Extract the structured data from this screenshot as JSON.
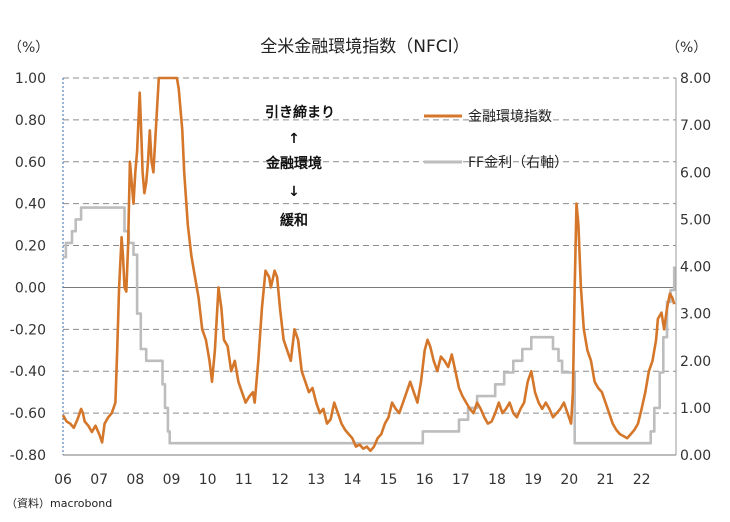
{
  "chart_data": {
    "type": "line",
    "title": "全米金融環境指数（NFCI）",
    "left_unit": "（%）",
    "right_unit": "（%）",
    "source": "（資料）macrobond",
    "grid": true,
    "legend_position": "top-right",
    "x_range": [
      2006.0,
      2022.95
    ],
    "x_tick_values": [
      2006,
      2007,
      2008,
      2009,
      2010,
      2011,
      2012,
      2013,
      2014,
      2015,
      2016,
      2017,
      2018,
      2019,
      2020,
      2021,
      2022
    ],
    "x_tick_labels": [
      "06",
      "07",
      "08",
      "09",
      "10",
      "11",
      "12",
      "13",
      "14",
      "15",
      "16",
      "17",
      "18",
      "19",
      "20",
      "21",
      "22"
    ],
    "y_left": {
      "range": [
        -0.8,
        1.0
      ],
      "ticks": [
        "-0.80",
        "-0.60",
        "-0.40",
        "-0.20",
        "0.00",
        "0.20",
        "0.40",
        "0.60",
        "0.80",
        "1.00"
      ],
      "tick_values": [
        -0.8,
        -0.6,
        -0.4,
        -0.2,
        0.0,
        0.2,
        0.4,
        0.6,
        0.8,
        1.0
      ]
    },
    "y_right": {
      "range": [
        0.0,
        8.0
      ],
      "ticks": [
        "0.00",
        "1.00",
        "2.00",
        "3.00",
        "4.00",
        "5.00",
        "6.00",
        "7.00",
        "8.00"
      ],
      "tick_values": [
        0,
        1,
        2,
        3,
        4,
        5,
        6,
        7,
        8
      ]
    },
    "annotations": {
      "line1": "引き締まり",
      "arrow_up": "↑",
      "line2": "金融環境",
      "arrow_down": "↓",
      "line3": "緩和"
    },
    "colors": {
      "nfci": "#D4772B",
      "ff": "#BDBDBD",
      "grid": "#8C8C8C"
    },
    "series": [
      {
        "name": "金融環境指数",
        "axis": "left",
        "color": "#D4772B",
        "points": [
          [
            2006.0,
            -0.61
          ],
          [
            2006.1,
            -0.64
          ],
          [
            2006.2,
            -0.65
          ],
          [
            2006.3,
            -0.67
          ],
          [
            2006.4,
            -0.63
          ],
          [
            2006.5,
            -0.58
          ],
          [
            2006.55,
            -0.6
          ],
          [
            2006.6,
            -0.64
          ],
          [
            2006.7,
            -0.66
          ],
          [
            2006.8,
            -0.69
          ],
          [
            2006.9,
            -0.66
          ],
          [
            2007.0,
            -0.7
          ],
          [
            2007.08,
            -0.74
          ],
          [
            2007.15,
            -0.65
          ],
          [
            2007.25,
            -0.62
          ],
          [
            2007.35,
            -0.6
          ],
          [
            2007.45,
            -0.55
          ],
          [
            2007.5,
            -0.3
          ],
          [
            2007.55,
            0.0
          ],
          [
            2007.62,
            0.24
          ],
          [
            2007.66,
            0.15
          ],
          [
            2007.7,
            0.0
          ],
          [
            2007.75,
            -0.02
          ],
          [
            2007.8,
            0.2
          ],
          [
            2007.85,
            0.6
          ],
          [
            2007.9,
            0.5
          ],
          [
            2007.95,
            0.4
          ],
          [
            2008.0,
            0.55
          ],
          [
            2008.05,
            0.65
          ],
          [
            2008.12,
            0.93
          ],
          [
            2008.15,
            0.8
          ],
          [
            2008.2,
            0.55
          ],
          [
            2008.25,
            0.45
          ],
          [
            2008.3,
            0.5
          ],
          [
            2008.35,
            0.6
          ],
          [
            2008.4,
            0.75
          ],
          [
            2008.45,
            0.6
          ],
          [
            2008.5,
            0.55
          ],
          [
            2008.55,
            0.7
          ],
          [
            2008.6,
            0.85
          ],
          [
            2008.65,
            1.0
          ],
          [
            2009.15,
            1.0
          ],
          [
            2009.2,
            0.95
          ],
          [
            2009.25,
            0.85
          ],
          [
            2009.3,
            0.75
          ],
          [
            2009.35,
            0.55
          ],
          [
            2009.45,
            0.3
          ],
          [
            2009.55,
            0.15
          ],
          [
            2009.65,
            0.05
          ],
          [
            2009.75,
            -0.05
          ],
          [
            2009.85,
            -0.2
          ],
          [
            2009.95,
            -0.25
          ],
          [
            2010.05,
            -0.35
          ],
          [
            2010.12,
            -0.45
          ],
          [
            2010.2,
            -0.3
          ],
          [
            2010.3,
            0.0
          ],
          [
            2010.38,
            -0.1
          ],
          [
            2010.45,
            -0.25
          ],
          [
            2010.55,
            -0.28
          ],
          [
            2010.65,
            -0.4
          ],
          [
            2010.75,
            -0.35
          ],
          [
            2010.85,
            -0.45
          ],
          [
            2010.95,
            -0.5
          ],
          [
            2011.05,
            -0.55
          ],
          [
            2011.15,
            -0.52
          ],
          [
            2011.25,
            -0.5
          ],
          [
            2011.3,
            -0.55
          ],
          [
            2011.4,
            -0.35
          ],
          [
            2011.5,
            -0.1
          ],
          [
            2011.6,
            0.08
          ],
          [
            2011.7,
            0.05
          ],
          [
            2011.75,
            0.0
          ],
          [
            2011.85,
            0.08
          ],
          [
            2011.92,
            0.05
          ],
          [
            2012.0,
            -0.1
          ],
          [
            2012.1,
            -0.25
          ],
          [
            2012.2,
            -0.3
          ],
          [
            2012.3,
            -0.35
          ],
          [
            2012.4,
            -0.2
          ],
          [
            2012.5,
            -0.25
          ],
          [
            2012.6,
            -0.4
          ],
          [
            2012.7,
            -0.45
          ],
          [
            2012.8,
            -0.5
          ],
          [
            2012.9,
            -0.48
          ],
          [
            2013.0,
            -0.55
          ],
          [
            2013.1,
            -0.6
          ],
          [
            2013.2,
            -0.58
          ],
          [
            2013.3,
            -0.65
          ],
          [
            2013.4,
            -0.63
          ],
          [
            2013.5,
            -0.55
          ],
          [
            2013.6,
            -0.6
          ],
          [
            2013.7,
            -0.65
          ],
          [
            2013.8,
            -0.68
          ],
          [
            2013.9,
            -0.7
          ],
          [
            2014.0,
            -0.72
          ],
          [
            2014.1,
            -0.76
          ],
          [
            2014.2,
            -0.75
          ],
          [
            2014.3,
            -0.77
          ],
          [
            2014.4,
            -0.76
          ],
          [
            2014.5,
            -0.78
          ],
          [
            2014.6,
            -0.76
          ],
          [
            2014.7,
            -0.72
          ],
          [
            2014.8,
            -0.7
          ],
          [
            2014.9,
            -0.65
          ],
          [
            2015.0,
            -0.62
          ],
          [
            2015.1,
            -0.55
          ],
          [
            2015.2,
            -0.58
          ],
          [
            2015.3,
            -0.6
          ],
          [
            2015.4,
            -0.55
          ],
          [
            2015.5,
            -0.5
          ],
          [
            2015.6,
            -0.45
          ],
          [
            2015.7,
            -0.5
          ],
          [
            2015.8,
            -0.55
          ],
          [
            2015.9,
            -0.45
          ],
          [
            2016.0,
            -0.3
          ],
          [
            2016.08,
            -0.25
          ],
          [
            2016.15,
            -0.28
          ],
          [
            2016.25,
            -0.35
          ],
          [
            2016.35,
            -0.4
          ],
          [
            2016.45,
            -0.33
          ],
          [
            2016.55,
            -0.35
          ],
          [
            2016.65,
            -0.38
          ],
          [
            2016.75,
            -0.32
          ],
          [
            2016.85,
            -0.4
          ],
          [
            2016.95,
            -0.48
          ],
          [
            2017.05,
            -0.52
          ],
          [
            2017.15,
            -0.55
          ],
          [
            2017.25,
            -0.58
          ],
          [
            2017.35,
            -0.6
          ],
          [
            2017.45,
            -0.55
          ],
          [
            2017.55,
            -0.58
          ],
          [
            2017.65,
            -0.62
          ],
          [
            2017.75,
            -0.65
          ],
          [
            2017.85,
            -0.64
          ],
          [
            2017.95,
            -0.6
          ],
          [
            2018.05,
            -0.55
          ],
          [
            2018.15,
            -0.6
          ],
          [
            2018.25,
            -0.58
          ],
          [
            2018.35,
            -0.55
          ],
          [
            2018.45,
            -0.6
          ],
          [
            2018.55,
            -0.62
          ],
          [
            2018.65,
            -0.58
          ],
          [
            2018.75,
            -0.55
          ],
          [
            2018.85,
            -0.45
          ],
          [
            2018.95,
            -0.4
          ],
          [
            2019.05,
            -0.5
          ],
          [
            2019.15,
            -0.55
          ],
          [
            2019.25,
            -0.58
          ],
          [
            2019.35,
            -0.55
          ],
          [
            2019.45,
            -0.58
          ],
          [
            2019.55,
            -0.62
          ],
          [
            2019.65,
            -0.6
          ],
          [
            2019.75,
            -0.58
          ],
          [
            2019.85,
            -0.55
          ],
          [
            2019.95,
            -0.6
          ],
          [
            2020.05,
            -0.65
          ],
          [
            2020.1,
            -0.5
          ],
          [
            2020.15,
            0.0
          ],
          [
            2020.2,
            0.4
          ],
          [
            2020.25,
            0.3
          ],
          [
            2020.32,
            0.0
          ],
          [
            2020.4,
            -0.2
          ],
          [
            2020.5,
            -0.3
          ],
          [
            2020.6,
            -0.35
          ],
          [
            2020.7,
            -0.45
          ],
          [
            2020.8,
            -0.48
          ],
          [
            2020.9,
            -0.5
          ],
          [
            2021.0,
            -0.55
          ],
          [
            2021.1,
            -0.6
          ],
          [
            2021.2,
            -0.65
          ],
          [
            2021.3,
            -0.68
          ],
          [
            2021.4,
            -0.7
          ],
          [
            2021.5,
            -0.71
          ],
          [
            2021.6,
            -0.72
          ],
          [
            2021.7,
            -0.7
          ],
          [
            2021.8,
            -0.68
          ],
          [
            2021.9,
            -0.65
          ],
          [
            2022.0,
            -0.58
          ],
          [
            2022.1,
            -0.5
          ],
          [
            2022.2,
            -0.4
          ],
          [
            2022.3,
            -0.35
          ],
          [
            2022.4,
            -0.25
          ],
          [
            2022.45,
            -0.15
          ],
          [
            2022.55,
            -0.12
          ],
          [
            2022.62,
            -0.2
          ],
          [
            2022.7,
            -0.1
          ],
          [
            2022.78,
            -0.03
          ],
          [
            2022.85,
            -0.05
          ],
          [
            2022.9,
            -0.08
          ]
        ]
      },
      {
        "name": "FF金利（右軸）",
        "axis": "right",
        "color": "#BDBDBD",
        "points": [
          [
            2006.0,
            4.2
          ],
          [
            2006.08,
            4.5
          ],
          [
            2006.25,
            4.75
          ],
          [
            2006.35,
            5.0
          ],
          [
            2006.5,
            5.25
          ],
          [
            2007.65,
            5.25
          ],
          [
            2007.7,
            4.75
          ],
          [
            2007.82,
            4.5
          ],
          [
            2007.95,
            4.25
          ],
          [
            2008.05,
            3.0
          ],
          [
            2008.15,
            2.25
          ],
          [
            2008.3,
            2.0
          ],
          [
            2008.75,
            1.5
          ],
          [
            2008.82,
            1.0
          ],
          [
            2008.9,
            0.5
          ],
          [
            2008.95,
            0.25
          ],
          [
            2015.92,
            0.25
          ],
          [
            2015.95,
            0.5
          ],
          [
            2016.92,
            0.5
          ],
          [
            2016.95,
            0.75
          ],
          [
            2017.2,
            1.0
          ],
          [
            2017.45,
            1.25
          ],
          [
            2017.95,
            1.5
          ],
          [
            2018.2,
            1.75
          ],
          [
            2018.45,
            2.0
          ],
          [
            2018.7,
            2.25
          ],
          [
            2018.95,
            2.5
          ],
          [
            2019.55,
            2.25
          ],
          [
            2019.7,
            2.0
          ],
          [
            2019.8,
            1.75
          ],
          [
            2020.15,
            0.25
          ],
          [
            2022.15,
            0.25
          ],
          [
            2022.25,
            0.5
          ],
          [
            2022.35,
            1.0
          ],
          [
            2022.5,
            1.75
          ],
          [
            2022.6,
            2.5
          ],
          [
            2022.7,
            3.25
          ],
          [
            2022.8,
            3.5
          ],
          [
            2022.9,
            4.0
          ]
        ]
      }
    ]
  }
}
